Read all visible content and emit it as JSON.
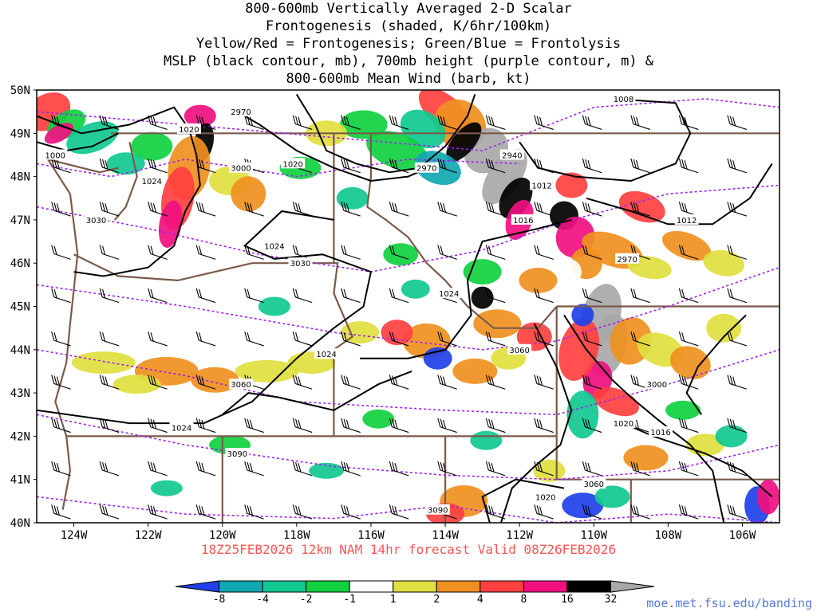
{
  "title": {
    "line1": "800-600mb Vertically Averaged 2-D Scalar",
    "line2": "Frontogenesis (shaded, K/6hr/100km)",
    "line3": "Yellow/Red = Frontogenesis;  Green/Blue = Frontolysis",
    "line4": "MSLP (black contour, mb), 700mb height (purple contour, m) &",
    "line5": "800-600mb Mean Wind (barb, kt)"
  },
  "map": {
    "lat_labels": [
      "50N",
      "49N",
      "48N",
      "47N",
      "46N",
      "45N",
      "44N",
      "43N",
      "42N",
      "41N",
      "40N"
    ],
    "lon_labels": [
      "124W",
      "122W",
      "120W",
      "118W",
      "116W",
      "114W",
      "112W",
      "110W",
      "108W",
      "106W"
    ],
    "colors": {
      "mslp_contour": "#000000",
      "height_contour": "#a020f0",
      "borders": "#7a5a4a",
      "wind_barb": "#000000"
    },
    "mslp_labels": [
      "1020",
      "1000",
      "1024",
      "1020",
      "1024",
      "1012",
      "1016",
      "1012",
      "1008",
      "1024",
      "1024",
      "1024",
      "1020",
      "1016",
      "1020"
    ],
    "height_labels": [
      "2970",
      "3030",
      "3000",
      "2970",
      "2940",
      "3030",
      "2970",
      "3060",
      "3060",
      "3000",
      "3090",
      "3060",
      "3090"
    ]
  },
  "forecast": "18Z25FEB2026 12km NAM 14hr forecast Valid 08Z26FEB2026",
  "legend": {
    "colors": [
      "#2040e8",
      "#10a8b0",
      "#10c890",
      "#10d040",
      "#ffffff",
      "#e0e040",
      "#f09020",
      "#ff4040",
      "#f01080",
      "#000000",
      "#a8a8a8"
    ],
    "ticks": [
      "-8",
      "-4",
      "-2",
      "-1",
      "1",
      "2",
      "4",
      "8",
      "16",
      "32"
    ]
  },
  "credit": "moe.met.fsu.edu/banding"
}
